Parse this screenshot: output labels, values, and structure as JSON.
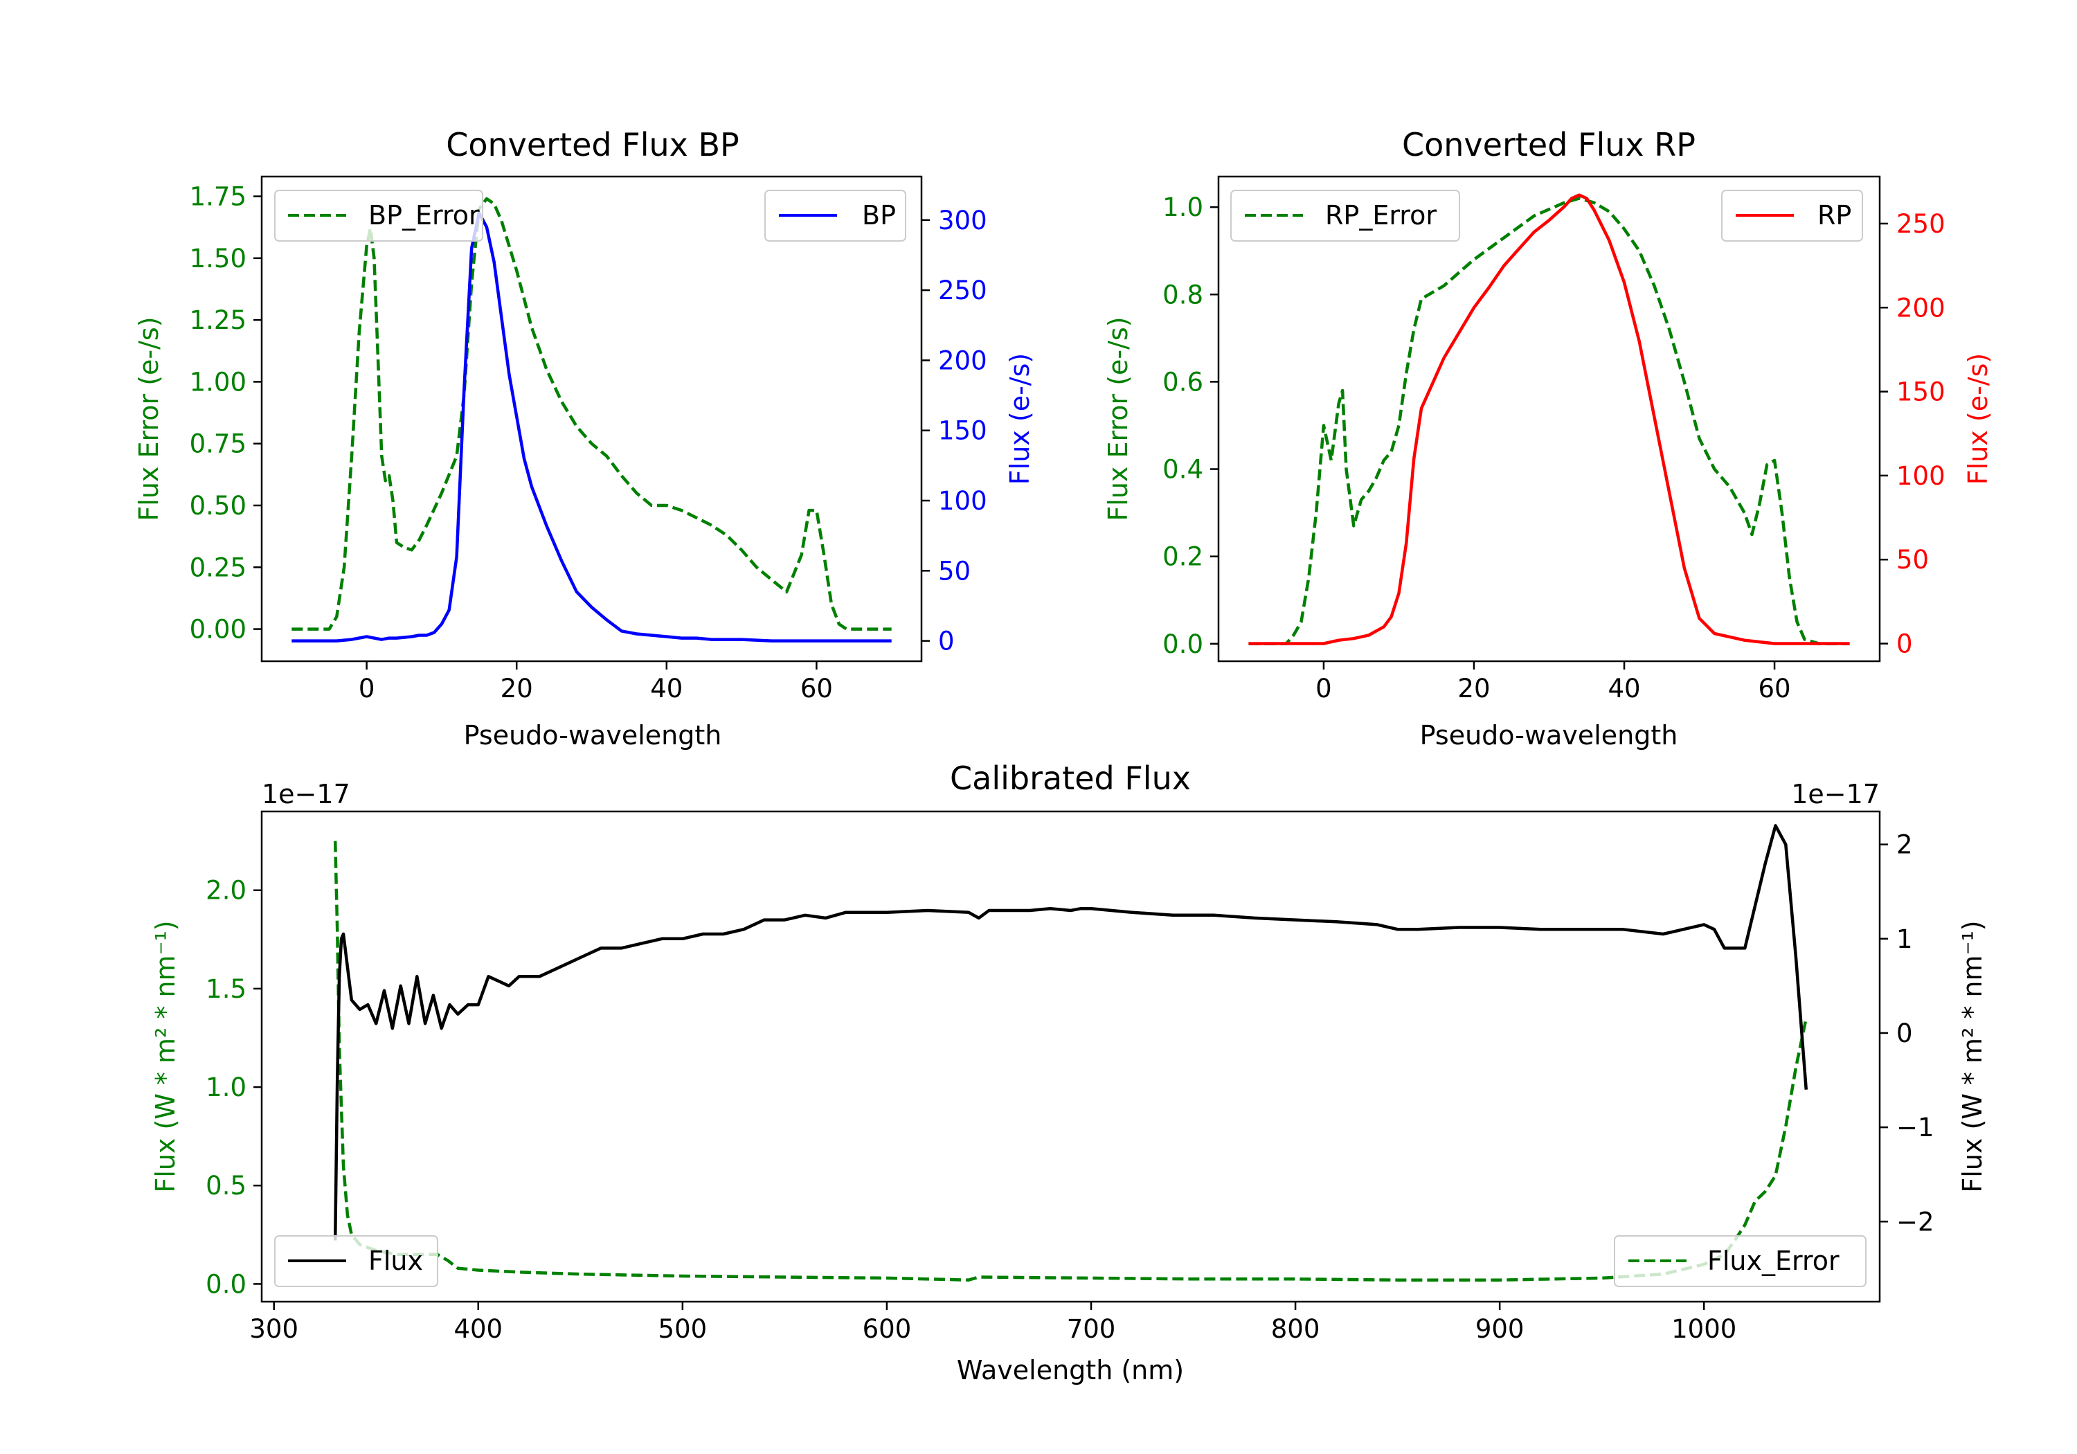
{
  "chart_data": [
    {
      "id": "bp",
      "type": "line",
      "title": "Converted Flux BP",
      "xlabel": "Pseudo-wavelength",
      "ylabel_left": "Flux Error (e-/s)",
      "ylabel_right": "Flux (e-/s)",
      "xlim": [
        -14,
        74
      ],
      "ylim_left": [
        -0.13,
        1.83
      ],
      "ylim_right": [
        -14.5,
        331
      ],
      "xticks": [
        0,
        20,
        40,
        60
      ],
      "xtick_labels": [
        "0",
        "20",
        "40",
        "60"
      ],
      "yticks_left": [
        0,
        0.25,
        0.5,
        0.75,
        1.0,
        1.25,
        1.5,
        1.75
      ],
      "ytick_labels_left": [
        "0.00",
        "0.25",
        "0.50",
        "0.75",
        "1.00",
        "1.25",
        "1.50",
        "1.75"
      ],
      "yticks_right": [
        0,
        50,
        100,
        150,
        200,
        250,
        300
      ],
      "ytick_labels_right": [
        "0",
        "50",
        "100",
        "150",
        "200",
        "250",
        "300"
      ],
      "legend_left": {
        "label": "BP_Error",
        "placement": "upper left"
      },
      "legend_right": {
        "label": "BP",
        "placement": "upper right"
      },
      "series": [
        {
          "name": "BP_Error",
          "axis": "left",
          "color": "#008000",
          "dash": true,
          "x": [
            -10,
            -5,
            -4,
            -3,
            -2,
            -1,
            0,
            0.5,
            1,
            1.5,
            2,
            2.5,
            3,
            3.5,
            4,
            5,
            6,
            7,
            8,
            10,
            12,
            13,
            14,
            15,
            16,
            17,
            18,
            20,
            22,
            24,
            26,
            28,
            30,
            32,
            34,
            36,
            38,
            40,
            42,
            44,
            46,
            48,
            50,
            52,
            54,
            56,
            58,
            59,
            60,
            61,
            62,
            63,
            64,
            66,
            68,
            70
          ],
          "values": [
            0,
            0,
            0.05,
            0.25,
            0.7,
            1.2,
            1.55,
            1.62,
            1.5,
            1.1,
            0.7,
            0.6,
            0.62,
            0.52,
            0.35,
            0.33,
            0.32,
            0.36,
            0.42,
            0.55,
            0.7,
            0.95,
            1.4,
            1.7,
            1.74,
            1.72,
            1.65,
            1.45,
            1.22,
            1.05,
            0.92,
            0.82,
            0.75,
            0.7,
            0.62,
            0.55,
            0.5,
            0.5,
            0.48,
            0.45,
            0.42,
            0.38,
            0.32,
            0.25,
            0.2,
            0.15,
            0.3,
            0.48,
            0.48,
            0.3,
            0.1,
            0.02,
            0,
            0,
            0,
            0
          ]
        },
        {
          "name": "BP",
          "axis": "right",
          "color": "#0000ff",
          "dash": false,
          "x": [
            -10,
            -6,
            -4,
            -2,
            0,
            1,
            2,
            3,
            4,
            6,
            7,
            8,
            9,
            10,
            11,
            12,
            13,
            14,
            15,
            15.5,
            16,
            17,
            18,
            19,
            20,
            21,
            22,
            24,
            26,
            28,
            30,
            32,
            34,
            36,
            38,
            40,
            42,
            44,
            46,
            50,
            54,
            58,
            62,
            66,
            70
          ],
          "values": [
            0,
            0,
            0,
            1,
            3,
            2,
            1,
            2,
            2,
            3,
            4,
            4,
            6,
            12,
            22,
            60,
            180,
            280,
            305,
            300,
            295,
            270,
            230,
            190,
            160,
            130,
            110,
            82,
            57,
            35,
            24,
            15,
            7,
            5,
            4,
            3,
            2,
            2,
            1,
            1,
            0,
            0,
            0,
            0,
            0
          ]
        }
      ]
    },
    {
      "id": "rp",
      "type": "line",
      "title": "Converted Flux RP",
      "xlabel": "Pseudo-wavelength",
      "ylabel_left": "Flux Error (e-/s)",
      "ylabel_right": "Flux (e-/s)",
      "xlim": [
        -14,
        74
      ],
      "ylim_left": [
        -0.04,
        1.07
      ],
      "ylim_right": [
        -10.5,
        278
      ],
      "xticks": [
        0,
        20,
        40,
        60
      ],
      "xtick_labels": [
        "0",
        "20",
        "40",
        "60"
      ],
      "yticks_left": [
        0,
        0.2,
        0.4,
        0.6,
        0.8,
        1.0
      ],
      "ytick_labels_left": [
        "0.0",
        "0.2",
        "0.4",
        "0.6",
        "0.8",
        "1.0"
      ],
      "yticks_right": [
        0,
        50,
        100,
        150,
        200,
        250
      ],
      "ytick_labels_right": [
        "0",
        "50",
        "100",
        "150",
        "200",
        "250"
      ],
      "legend_left": {
        "label": "RP_Error",
        "placement": "upper left"
      },
      "legend_right": {
        "label": "RP",
        "placement": "upper right"
      },
      "series": [
        {
          "name": "RP_Error",
          "axis": "left",
          "color": "#008000",
          "dash": true,
          "x": [
            -10,
            -5,
            -4,
            -3,
            -2,
            -1,
            0,
            1,
            2,
            2.5,
            3,
            4,
            5,
            6,
            7,
            8,
            9,
            10,
            11,
            12,
            13,
            14,
            16,
            18,
            20,
            24,
            28,
            32,
            34,
            36,
            38,
            40,
            42,
            44,
            46,
            48,
            50,
            52,
            54,
            56,
            57,
            58,
            59,
            60,
            61,
            62,
            63,
            64,
            66,
            68,
            70
          ],
          "values": [
            0,
            0,
            0.02,
            0.05,
            0.15,
            0.3,
            0.5,
            0.42,
            0.55,
            0.58,
            0.4,
            0.27,
            0.33,
            0.35,
            0.38,
            0.42,
            0.44,
            0.5,
            0.62,
            0.72,
            0.79,
            0.8,
            0.82,
            0.85,
            0.88,
            0.93,
            0.98,
            1.01,
            1.02,
            1.01,
            0.99,
            0.95,
            0.9,
            0.82,
            0.72,
            0.6,
            0.47,
            0.4,
            0.36,
            0.3,
            0.25,
            0.32,
            0.41,
            0.42,
            0.3,
            0.15,
            0.05,
            0.01,
            0,
            0,
            0
          ]
        },
        {
          "name": "RP",
          "axis": "right",
          "color": "#ff0000",
          "dash": false,
          "x": [
            -10,
            -2,
            0,
            2,
            4,
            6,
            8,
            9,
            10,
            11,
            12,
            13,
            14,
            16,
            18,
            20,
            22,
            24,
            26,
            28,
            30,
            32,
            33,
            34,
            35,
            36,
            38,
            40,
            42,
            44,
            46,
            48,
            50,
            52,
            54,
            56,
            58,
            60,
            62,
            64,
            66,
            70
          ],
          "values": [
            0,
            0,
            0,
            2,
            3,
            5,
            10,
            16,
            30,
            60,
            110,
            140,
            150,
            170,
            185,
            200,
            212,
            225,
            235,
            245,
            252,
            260,
            265,
            267,
            265,
            258,
            240,
            215,
            180,
            135,
            90,
            45,
            15,
            6,
            4,
            2,
            1,
            0,
            0,
            0,
            0,
            0
          ]
        }
      ]
    },
    {
      "id": "cal",
      "type": "line",
      "title": "Calibrated Flux",
      "xlabel": "Wavelength (nm)",
      "ylabel_left": "Flux (W * m² * nm⁻¹)",
      "ylabel_right": "Flux (W * m² * nm⁻¹)",
      "offset_left": "1e−17",
      "offset_right": "1e−17",
      "xlim": [
        294,
        1086
      ],
      "ylim_left": [
        -0.09,
        2.4
      ],
      "ylim_right": [
        -2.85,
        2.35
      ],
      "xticks": [
        300,
        400,
        500,
        600,
        700,
        800,
        900,
        1000
      ],
      "xtick_labels": [
        "300",
        "400",
        "500",
        "600",
        "700",
        "800",
        "900",
        "1000"
      ],
      "yticks_left": [
        0,
        0.5,
        1.0,
        1.5,
        2.0
      ],
      "ytick_labels_left": [
        "0.0",
        "0.5",
        "1.0",
        "1.5",
        "2.0"
      ],
      "yticks_right": [
        -2,
        -1,
        0,
        1,
        2
      ],
      "ytick_labels_right": [
        "−2",
        "−1",
        "0",
        "1",
        "2"
      ],
      "legend_left": {
        "label": "Flux",
        "placement": "lower left"
      },
      "legend_right": {
        "label": "Flux_Error",
        "placement": "lower right"
      },
      "series": [
        {
          "name": "Flux_Error",
          "axis": "left",
          "color": "#008000",
          "dash": true,
          "x": [
            330,
            331,
            332,
            334,
            336,
            338,
            342,
            350,
            360,
            370,
            380,
            385,
            390,
            400,
            420,
            450,
            500,
            550,
            600,
            640,
            645,
            700,
            750,
            800,
            850,
            900,
            950,
            980,
            1000,
            1010,
            1015,
            1020,
            1025,
            1030,
            1035,
            1040,
            1045,
            1050
          ],
          "values": [
            2.25,
            1.8,
            1.2,
            0.6,
            0.35,
            0.25,
            0.2,
            0.17,
            0.15,
            0.15,
            0.15,
            0.12,
            0.08,
            0.07,
            0.06,
            0.05,
            0.04,
            0.035,
            0.03,
            0.02,
            0.035,
            0.03,
            0.025,
            0.025,
            0.02,
            0.02,
            0.03,
            0.05,
            0.1,
            0.15,
            0.22,
            0.3,
            0.42,
            0.47,
            0.55,
            0.8,
            1.1,
            1.35
          ]
        },
        {
          "name": "Flux",
          "axis": "right",
          "color": "#000000",
          "dash": false,
          "x": [
            330,
            331,
            332,
            333,
            334,
            336,
            338,
            342,
            346,
            350,
            354,
            358,
            362,
            366,
            370,
            374,
            378,
            382,
            386,
            390,
            395,
            400,
            405,
            410,
            415,
            420,
            430,
            440,
            450,
            460,
            470,
            480,
            490,
            500,
            510,
            520,
            530,
            540,
            550,
            560,
            570,
            580,
            600,
            620,
            640,
            645,
            650,
            660,
            670,
            680,
            690,
            695,
            700,
            710,
            720,
            740,
            760,
            780,
            800,
            820,
            840,
            850,
            860,
            880,
            900,
            920,
            940,
            960,
            980,
            990,
            1000,
            1005,
            1010,
            1020,
            1030,
            1035,
            1040,
            1045,
            1050
          ],
          "values": [
            -2.2,
            -0.5,
            0.6,
            1.0,
            1.05,
            0.7,
            0.35,
            0.25,
            0.3,
            0.1,
            0.45,
            0.05,
            0.5,
            0.1,
            0.6,
            0.1,
            0.4,
            0.05,
            0.3,
            0.2,
            0.3,
            0.3,
            0.6,
            0.55,
            0.5,
            0.6,
            0.6,
            0.7,
            0.8,
            0.9,
            0.9,
            0.95,
            1.0,
            1.0,
            1.05,
            1.05,
            1.1,
            1.2,
            1.2,
            1.25,
            1.22,
            1.28,
            1.28,
            1.3,
            1.28,
            1.22,
            1.3,
            1.3,
            1.3,
            1.32,
            1.3,
            1.32,
            1.32,
            1.3,
            1.28,
            1.25,
            1.25,
            1.22,
            1.2,
            1.18,
            1.15,
            1.1,
            1.1,
            1.12,
            1.12,
            1.1,
            1.1,
            1.1,
            1.05,
            1.1,
            1.15,
            1.1,
            0.9,
            0.9,
            1.8,
            2.2,
            2.0,
            0.8,
            -0.6
          ]
        }
      ]
    }
  ]
}
